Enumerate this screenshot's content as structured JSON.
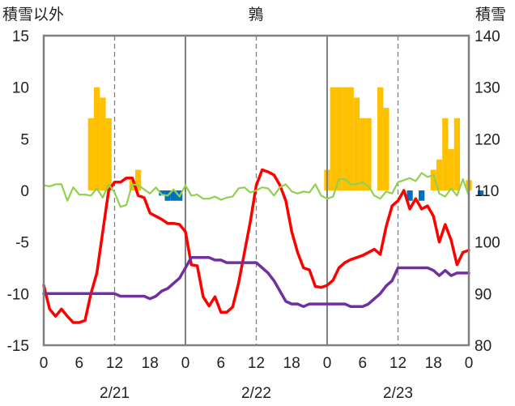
{
  "chart_data": {
    "type": "bar+line",
    "title": "鶉",
    "left_axis_label": "積雪以外",
    "right_axis_label": "積雪",
    "left_ylim": [
      -15,
      15
    ],
    "right_ylim": [
      80,
      140
    ],
    "left_ticks": [
      "15",
      "10",
      "5",
      "0",
      "-5",
      "-10",
      "-15"
    ],
    "right_ticks": [
      "140",
      "130",
      "120",
      "110",
      "100",
      "90",
      "80"
    ],
    "x_tick_labels": [
      "0",
      "6",
      "12",
      "18",
      "0",
      "6",
      "12",
      "18",
      "0",
      "6",
      "12",
      "18",
      "0"
    ],
    "date_labels": [
      "2/21",
      "2/22",
      "2/23"
    ],
    "grid": "dashed vertical at 12:00 (gray), solid at day boundaries",
    "colors": {
      "precipitation": "#FFC000",
      "snowfall_negative": "#0070C0",
      "temperature": "#FF0000",
      "wind": "#92D050",
      "snow_depth": "#7030A0",
      "frame": "#808080"
    },
    "series": [
      {
        "key": "precipitation",
        "type": "bar",
        "axis": "left",
        "points": [
          [
            8,
            7
          ],
          [
            9,
            10
          ],
          [
            10,
            9
          ],
          [
            11,
            7
          ],
          [
            15,
            1
          ],
          [
            16,
            2
          ],
          [
            48,
            2
          ],
          [
            49,
            10
          ],
          [
            50,
            10
          ],
          [
            51,
            10
          ],
          [
            52,
            10
          ],
          [
            53,
            9
          ],
          [
            54,
            7
          ],
          [
            55,
            7
          ],
          [
            57,
            10
          ],
          [
            58,
            8
          ],
          [
            66,
            2
          ],
          [
            67,
            3
          ],
          [
            68,
            7
          ],
          [
            69,
            4
          ],
          [
            70,
            7
          ],
          [
            72,
            1
          ]
        ]
      },
      {
        "key": "snowfall_negative",
        "type": "bar",
        "axis": "left",
        "points": [
          [
            20,
            -0.5
          ],
          [
            21,
            -1
          ],
          [
            22,
            -1
          ],
          [
            23,
            -1
          ],
          [
            62,
            -1
          ],
          [
            64,
            -1
          ],
          [
            74,
            -0.5
          ]
        ]
      },
      {
        "key": "temperature",
        "type": "line",
        "axis": "left",
        "points": [
          [
            0,
            -9.2
          ],
          [
            1,
            -11.5
          ],
          [
            2,
            -12.2
          ],
          [
            3,
            -11.5
          ],
          [
            4,
            -12.2
          ],
          [
            5,
            -12.8
          ],
          [
            6,
            -12.8
          ],
          [
            7,
            -12.6
          ],
          [
            8,
            -10
          ],
          [
            9,
            -8
          ],
          [
            10,
            -4
          ],
          [
            11,
            0
          ],
          [
            12,
            0.8
          ],
          [
            13,
            0.8
          ],
          [
            14,
            1.2
          ],
          [
            15,
            1.2
          ],
          [
            16,
            -0.5
          ],
          [
            17,
            -0.7
          ],
          [
            18,
            -2.2
          ],
          [
            19,
            -2.5
          ],
          [
            20,
            -2.8
          ],
          [
            21,
            -3.2
          ],
          [
            22,
            -3.2
          ],
          [
            23,
            -3.3
          ],
          [
            24,
            -4
          ],
          [
            25,
            -7.2
          ],
          [
            26,
            -7.3
          ],
          [
            27,
            -10.3
          ],
          [
            28,
            -11.2
          ],
          [
            29,
            -10.3
          ],
          [
            30,
            -11.8
          ],
          [
            31,
            -11.8
          ],
          [
            32,
            -11.3
          ],
          [
            33,
            -9
          ],
          [
            34,
            -6
          ],
          [
            35,
            -3
          ],
          [
            36,
            0.5
          ],
          [
            37,
            2
          ],
          [
            38,
            1.8
          ],
          [
            39,
            1.5
          ],
          [
            40,
            0.5
          ],
          [
            41,
            -1
          ],
          [
            42,
            -4
          ],
          [
            43,
            -6
          ],
          [
            44,
            -7.5
          ],
          [
            45,
            -7.7
          ],
          [
            46,
            -9.3
          ],
          [
            47,
            -9.4
          ],
          [
            48,
            -9.2
          ],
          [
            49,
            -8.7
          ],
          [
            50,
            -7.5
          ],
          [
            51,
            -7
          ],
          [
            52,
            -6.7
          ],
          [
            53,
            -6.5
          ],
          [
            54,
            -6.3
          ],
          [
            55,
            -6
          ],
          [
            56,
            -5.7
          ],
          [
            57,
            -6.2
          ],
          [
            58,
            -3.5
          ],
          [
            59,
            -1.5
          ],
          [
            60,
            -1
          ],
          [
            61,
            0
          ],
          [
            62,
            -1.8
          ],
          [
            63,
            -0.8
          ],
          [
            64,
            -1.8
          ],
          [
            65,
            -1.5
          ],
          [
            66,
            -2.5
          ],
          [
            67,
            -5
          ],
          [
            68,
            -3.3
          ],
          [
            69,
            -4.8
          ],
          [
            70,
            -7.2
          ],
          [
            71,
            -6
          ],
          [
            72,
            -5.8
          ]
        ]
      },
      {
        "key": "wind",
        "type": "line",
        "axis": "left",
        "points": [
          [
            0,
            0.5
          ],
          [
            1,
            0.4
          ],
          [
            2,
            0.6
          ],
          [
            3,
            0.6
          ],
          [
            4,
            -1
          ],
          [
            5,
            0.3
          ],
          [
            6,
            -0.4
          ],
          [
            7,
            -0.4
          ],
          [
            8,
            -0.5
          ],
          [
            9,
            0.2
          ],
          [
            10,
            -0.7
          ],
          [
            11,
            0.6
          ],
          [
            12,
            -0.2
          ],
          [
            13,
            -1.6
          ],
          [
            14,
            -1.4
          ],
          [
            15,
            0.6
          ],
          [
            16,
            0.5
          ],
          [
            17,
            0.1
          ],
          [
            18,
            -0.3
          ],
          [
            19,
            0.3
          ],
          [
            20,
            -0.4
          ],
          [
            21,
            -0.5
          ],
          [
            22,
            0.1
          ],
          [
            23,
            -0.6
          ],
          [
            24,
            0.5
          ],
          [
            25,
            -0.5
          ],
          [
            26,
            -0.4
          ],
          [
            27,
            -0.8
          ],
          [
            28,
            -0.8
          ],
          [
            29,
            -0.6
          ],
          [
            30,
            -0.9
          ],
          [
            31,
            -0.7
          ],
          [
            32,
            -0.6
          ],
          [
            33,
            0.2
          ],
          [
            34,
            0.3
          ],
          [
            35,
            -0.2
          ],
          [
            36,
            0
          ],
          [
            37,
            0.3
          ],
          [
            38,
            0.2
          ],
          [
            39,
            -0.5
          ],
          [
            40,
            0.3
          ],
          [
            41,
            0.6
          ],
          [
            42,
            -0.1
          ],
          [
            43,
            -0.3
          ],
          [
            44,
            -0.1
          ],
          [
            45,
            -0.2
          ],
          [
            46,
            0.6
          ],
          [
            47,
            -0.5
          ],
          [
            48,
            -0.8
          ],
          [
            49,
            -0.6
          ],
          [
            50,
            1.1
          ],
          [
            51,
            1.1
          ],
          [
            52,
            0.6
          ],
          [
            53,
            0.6
          ],
          [
            54,
            0.8
          ],
          [
            55,
            0.4
          ],
          [
            56,
            -0.5
          ],
          [
            57,
            -0.8
          ],
          [
            58,
            -0.1
          ],
          [
            59,
            -0.3
          ],
          [
            60,
            0.8
          ],
          [
            61,
            1
          ],
          [
            62,
            1.2
          ],
          [
            63,
            0.9
          ],
          [
            64,
            1.7
          ],
          [
            65,
            1.3
          ],
          [
            66,
            1.5
          ],
          [
            67,
            -0.3
          ],
          [
            68,
            -0.6
          ],
          [
            69,
            0.2
          ],
          [
            70,
            -0.5
          ],
          [
            71,
            1.1
          ],
          [
            72,
            -0.5
          ]
        ]
      },
      {
        "key": "snow_depth",
        "type": "line",
        "axis": "right",
        "points": [
          [
            0,
            90
          ],
          [
            1,
            90
          ],
          [
            2,
            90
          ],
          [
            3,
            90
          ],
          [
            4,
            90
          ],
          [
            5,
            90
          ],
          [
            6,
            90
          ],
          [
            7,
            90
          ],
          [
            8,
            90
          ],
          [
            9,
            90
          ],
          [
            10,
            90
          ],
          [
            11,
            90
          ],
          [
            12,
            90
          ],
          [
            13,
            89.5
          ],
          [
            14,
            89.5
          ],
          [
            15,
            89.5
          ],
          [
            16,
            89.5
          ],
          [
            17,
            89.5
          ],
          [
            18,
            89
          ],
          [
            19,
            89.5
          ],
          [
            20,
            90.5
          ],
          [
            21,
            91
          ],
          [
            22,
            92
          ],
          [
            23,
            93
          ],
          [
            24,
            95
          ],
          [
            25,
            97
          ],
          [
            26,
            97
          ],
          [
            27,
            97
          ],
          [
            28,
            97
          ],
          [
            29,
            96.5
          ],
          [
            30,
            96.5
          ],
          [
            31,
            96
          ],
          [
            32,
            96
          ],
          [
            33,
            96
          ],
          [
            34,
            96
          ],
          [
            35,
            96
          ],
          [
            36,
            96
          ],
          [
            37,
            95
          ],
          [
            38,
            94
          ],
          [
            39,
            92.5
          ],
          [
            40,
            90.5
          ],
          [
            41,
            88.5
          ],
          [
            42,
            88
          ],
          [
            43,
            88
          ],
          [
            44,
            87.5
          ],
          [
            45,
            88
          ],
          [
            46,
            88
          ],
          [
            47,
            88
          ],
          [
            48,
            88
          ],
          [
            49,
            88
          ],
          [
            50,
            88
          ],
          [
            51,
            88
          ],
          [
            52,
            87.5
          ],
          [
            53,
            87.5
          ],
          [
            54,
            87.5
          ],
          [
            55,
            88
          ],
          [
            56,
            89
          ],
          [
            57,
            90
          ],
          [
            58,
            91.5
          ],
          [
            59,
            92.5
          ],
          [
            60,
            95
          ],
          [
            61,
            95
          ],
          [
            62,
            95
          ],
          [
            63,
            95
          ],
          [
            64,
            95
          ],
          [
            65,
            95
          ],
          [
            66,
            94.5
          ],
          [
            67,
            93.5
          ],
          [
            68,
            94.5
          ],
          [
            69,
            93.5
          ],
          [
            70,
            94
          ],
          [
            71,
            94
          ],
          [
            72,
            94
          ]
        ]
      }
    ]
  }
}
